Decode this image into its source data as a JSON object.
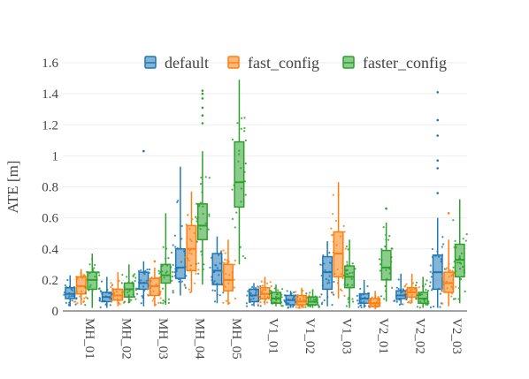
{
  "chart_data": {
    "type": "box",
    "title": "",
    "xlabel": "",
    "ylabel": "ATE [m]",
    "ylim": [
      0,
      1.6
    ],
    "yticks": [
      0,
      0.2,
      0.4,
      0.6,
      0.8,
      1,
      1.2,
      1.4,
      1.6
    ],
    "ytick_labels": [
      "0",
      "0.2",
      "0.4",
      "0.6",
      "0.8",
      "1",
      "1.2",
      "1.4",
      "1.6"
    ],
    "grid": true,
    "legend_position": "top-right",
    "categories": [
      "MH_01",
      "MH_02",
      "MH_03",
      "MH_04",
      "MH_05",
      "V1_01",
      "V1_02",
      "V1_03",
      "V2_01",
      "V2_02",
      "V2_03"
    ],
    "series": [
      {
        "name": "default",
        "color": "#1f77b4",
        "boxes": [
          {
            "lower_fence": 0.03,
            "q1": 0.08,
            "median": 0.11,
            "q3": 0.15,
            "upper_fence": 0.23,
            "outliers": []
          },
          {
            "lower_fence": 0.02,
            "q1": 0.06,
            "median": 0.09,
            "q3": 0.12,
            "upper_fence": 0.22,
            "outliers": []
          },
          {
            "lower_fence": 0.03,
            "q1": 0.14,
            "median": 0.18,
            "q3": 0.25,
            "upper_fence": 0.32,
            "outliers": [
              1.03
            ]
          },
          {
            "lower_fence": 0.1,
            "q1": 0.21,
            "median": 0.28,
            "q3": 0.4,
            "upper_fence": 0.93,
            "outliers": []
          },
          {
            "lower_fence": 0.05,
            "q1": 0.17,
            "median": 0.26,
            "q3": 0.37,
            "upper_fence": 0.48,
            "outliers": []
          },
          {
            "lower_fence": 0.03,
            "q1": 0.06,
            "median": 0.1,
            "q3": 0.14,
            "upper_fence": 0.18,
            "outliers": []
          },
          {
            "lower_fence": 0.02,
            "q1": 0.04,
            "median": 0.07,
            "q3": 0.1,
            "upper_fence": 0.13,
            "outliers": []
          },
          {
            "lower_fence": 0.03,
            "q1": 0.14,
            "median": 0.25,
            "q3": 0.35,
            "upper_fence": 0.45,
            "outliers": []
          },
          {
            "lower_fence": 0.02,
            "q1": 0.05,
            "median": 0.08,
            "q3": 0.11,
            "upper_fence": 0.2,
            "outliers": []
          },
          {
            "lower_fence": 0.04,
            "q1": 0.08,
            "median": 0.1,
            "q3": 0.13,
            "upper_fence": 0.24,
            "outliers": []
          },
          {
            "lower_fence": 0.02,
            "q1": 0.14,
            "median": 0.25,
            "q3": 0.36,
            "upper_fence": 0.6,
            "outliers": [
              0.76,
              0.92,
              0.97,
              1.13,
              1.23,
              1.41
            ]
          }
        ]
      },
      {
        "name": "fast_config",
        "color": "#ff7f0e",
        "boxes": [
          {
            "lower_fence": 0.04,
            "q1": 0.11,
            "median": 0.16,
            "q3": 0.22,
            "upper_fence": 0.27,
            "outliers": []
          },
          {
            "lower_fence": 0.03,
            "q1": 0.07,
            "median": 0.1,
            "q3": 0.14,
            "upper_fence": 0.25,
            "outliers": []
          },
          {
            "lower_fence": 0.03,
            "q1": 0.1,
            "median": 0.16,
            "q3": 0.21,
            "upper_fence": 0.28,
            "outliers": [
              0.32
            ]
          },
          {
            "lower_fence": 0.12,
            "q1": 0.26,
            "median": 0.4,
            "q3": 0.55,
            "upper_fence": 0.77,
            "outliers": []
          },
          {
            "lower_fence": 0.04,
            "q1": 0.13,
            "median": 0.2,
            "q3": 0.3,
            "upper_fence": 0.46,
            "outliers": []
          },
          {
            "lower_fence": 0.04,
            "q1": 0.08,
            "median": 0.11,
            "q3": 0.15,
            "upper_fence": 0.22,
            "outliers": []
          },
          {
            "lower_fence": 0.02,
            "q1": 0.04,
            "median": 0.06,
            "q3": 0.1,
            "upper_fence": 0.15,
            "outliers": []
          },
          {
            "lower_fence": 0.08,
            "q1": 0.22,
            "median": 0.37,
            "q3": 0.51,
            "upper_fence": 0.83,
            "outliers": []
          },
          {
            "lower_fence": 0.01,
            "q1": 0.03,
            "median": 0.05,
            "q3": 0.08,
            "upper_fence": 0.13,
            "outliers": []
          },
          {
            "lower_fence": 0.05,
            "q1": 0.09,
            "median": 0.12,
            "q3": 0.15,
            "upper_fence": 0.24,
            "outliers": []
          },
          {
            "lower_fence": 0.03,
            "q1": 0.12,
            "median": 0.18,
            "q3": 0.25,
            "upper_fence": 0.46,
            "outliers": [
              0.63
            ]
          }
        ]
      },
      {
        "name": "faster_config",
        "color": "#2ca02c",
        "boxes": [
          {
            "lower_fence": 0.02,
            "q1": 0.14,
            "median": 0.2,
            "q3": 0.25,
            "upper_fence": 0.37,
            "outliers": []
          },
          {
            "lower_fence": 0.05,
            "q1": 0.09,
            "median": 0.14,
            "q3": 0.18,
            "upper_fence": 0.3,
            "outliers": []
          },
          {
            "lower_fence": 0.04,
            "q1": 0.18,
            "median": 0.23,
            "q3": 0.3,
            "upper_fence": 0.63,
            "outliers": []
          },
          {
            "lower_fence": 0.17,
            "q1": 0.46,
            "median": 0.55,
            "q3": 0.69,
            "upper_fence": 1.03,
            "outliers": [
              1.21,
              1.26,
              1.31,
              1.37,
              1.4,
              1.42
            ]
          },
          {
            "lower_fence": 0.3,
            "q1": 0.67,
            "median": 0.83,
            "q3": 1.09,
            "upper_fence": 1.49,
            "outliers": []
          },
          {
            "lower_fence": 0.03,
            "q1": 0.05,
            "median": 0.08,
            "q3": 0.12,
            "upper_fence": 0.17,
            "outliers": []
          },
          {
            "lower_fence": 0.02,
            "q1": 0.04,
            "median": 0.06,
            "q3": 0.09,
            "upper_fence": 0.14,
            "outliers": []
          },
          {
            "lower_fence": 0.02,
            "q1": 0.15,
            "median": 0.22,
            "q3": 0.29,
            "upper_fence": 0.46,
            "outliers": []
          },
          {
            "lower_fence": 0.06,
            "q1": 0.2,
            "median": 0.28,
            "q3": 0.39,
            "upper_fence": 0.57,
            "outliers": [
              0.66
            ]
          },
          {
            "lower_fence": 0.02,
            "q1": 0.05,
            "median": 0.08,
            "q3": 0.12,
            "upper_fence": 0.22,
            "outliers": []
          },
          {
            "lower_fence": 0.05,
            "q1": 0.22,
            "median": 0.33,
            "q3": 0.43,
            "upper_fence": 0.72,
            "outliers": []
          }
        ]
      }
    ]
  }
}
